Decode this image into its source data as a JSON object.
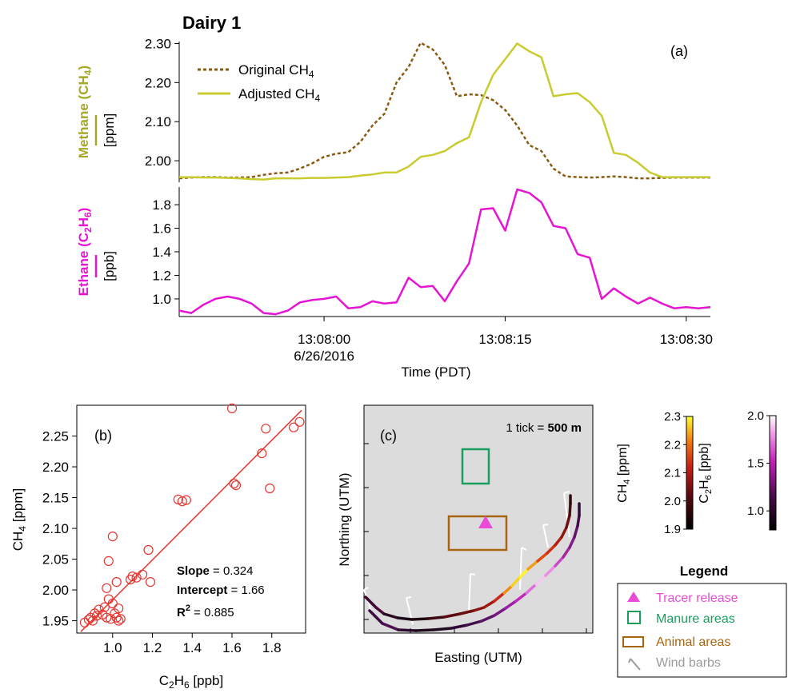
{
  "figure_title": "Dairy 1",
  "chart_data": [
    {
      "panel_label": "(a)",
      "type": "line",
      "xlabel": "Time (PDT)",
      "x_ticks": [
        {
          "label": "13:08:00",
          "t": 12,
          "sublabel": "6/26/2016"
        },
        {
          "label": "13:08:15",
          "t": 27,
          "sublabel": ""
        },
        {
          "label": "13:08:30",
          "t": 42,
          "sublabel": ""
        }
      ],
      "xlim": [
        0,
        44
      ],
      "subplots": [
        {
          "ylabel_main": "Methane",
          "ylabel_species": "CH",
          "ylabel_species_sub": "4",
          "ylabel_unit": "[ppm]",
          "color_label": "#a3a828",
          "ylim": [
            1.945,
            2.305
          ],
          "yticks": [
            2.0,
            2.1,
            2.2,
            2.3
          ],
          "ytick_labels": [
            "2.00",
            "2.10",
            "2.20",
            "2.30"
          ],
          "legend": [
            {
              "label": "Original CH",
              "sub": "4",
              "style": "dotted",
              "color": "#8a5a12"
            },
            {
              "label": "Adjusted CH",
              "sub": "4",
              "style": "solid",
              "color": "#c8cc30"
            }
          ],
          "series": [
            {
              "name": "Original CH4",
              "color": "#8a5a12",
              "style": "dotted",
              "x": [
                0,
                1,
                2,
                3,
                4,
                5,
                6,
                7,
                8,
                9,
                10,
                11,
                12,
                13,
                14,
                15,
                16,
                17,
                18,
                19,
                20,
                21,
                22,
                23,
                24,
                25,
                26,
                27,
                28,
                29,
                30,
                31,
                32,
                33,
                34,
                35,
                36,
                37,
                38,
                39,
                40,
                41,
                42,
                43,
                44
              ],
              "y": [
                1.955,
                1.957,
                1.958,
                1.958,
                1.957,
                1.957,
                1.958,
                1.964,
                1.968,
                1.97,
                1.98,
                1.993,
                2.01,
                2.018,
                2.022,
                2.048,
                2.09,
                2.12,
                2.2,
                2.24,
                2.302,
                2.285,
                2.245,
                2.165,
                2.17,
                2.168,
                2.155,
                2.13,
                2.09,
                2.04,
                2.025,
                1.98,
                1.96,
                1.958,
                1.957,
                1.958,
                1.96,
                1.958,
                1.955,
                1.955,
                1.956,
                1.957,
                1.957,
                1.957,
                1.957
              ]
            },
            {
              "name": "Adjusted CH4",
              "color": "#c8cc30",
              "style": "solid",
              "x": [
                0,
                1,
                2,
                3,
                4,
                5,
                6,
                7,
                8,
                9,
                10,
                11,
                12,
                13,
                14,
                15,
                16,
                17,
                18,
                19,
                20,
                21,
                22,
                23,
                24,
                25,
                26,
                27,
                28,
                29,
                30,
                31,
                32,
                33,
                34,
                35,
                36,
                37,
                38,
                39,
                40,
                41,
                42,
                43,
                44
              ],
              "y": [
                1.958,
                1.958,
                1.957,
                1.957,
                1.956,
                1.955,
                1.953,
                1.952,
                1.955,
                1.955,
                1.955,
                1.956,
                1.956,
                1.957,
                1.958,
                1.962,
                1.965,
                1.97,
                1.97,
                1.985,
                2.01,
                2.015,
                2.025,
                2.045,
                2.06,
                2.15,
                2.22,
                2.26,
                2.3,
                2.28,
                2.265,
                2.165,
                2.17,
                2.173,
                2.15,
                2.115,
                2.02,
                2.015,
                1.995,
                1.97,
                1.958,
                1.958,
                1.958,
                1.958,
                1.958
              ]
            }
          ]
        },
        {
          "ylabel_main": "Ethane",
          "ylabel_species": "C",
          "ylabel_species_sub1": "2",
          "ylabel_species_mid": "H",
          "ylabel_species_sub2": "6",
          "ylabel_unit": "[ppb]",
          "color_label": "#e615d4",
          "ylim": [
            0.85,
            1.95
          ],
          "yticks": [
            1.0,
            1.2,
            1.4,
            1.6,
            1.8
          ],
          "ytick_labels": [
            "1.0",
            "1.2",
            "1.4",
            "1.6",
            "1.8"
          ],
          "series": [
            {
              "name": "Ethane",
              "color": "#e615d4",
              "style": "solid",
              "x": [
                0,
                1,
                2,
                3,
                4,
                5,
                6,
                7,
                8,
                9,
                10,
                11,
                12,
                13,
                14,
                15,
                16,
                17,
                18,
                19,
                20,
                21,
                22,
                23,
                24,
                25,
                26,
                27,
                28,
                29,
                30,
                31,
                32,
                33,
                34,
                35,
                36,
                37,
                38,
                39,
                40,
                41,
                42,
                43,
                44
              ],
              "y": [
                0.9,
                0.88,
                0.95,
                1.0,
                1.02,
                1.0,
                0.96,
                0.88,
                0.87,
                0.9,
                0.97,
                0.99,
                1.0,
                1.02,
                0.92,
                0.93,
                0.98,
                0.96,
                0.97,
                1.18,
                1.1,
                1.11,
                0.98,
                1.15,
                1.3,
                1.76,
                1.77,
                1.58,
                1.93,
                1.9,
                1.82,
                1.62,
                1.6,
                1.38,
                1.35,
                1.0,
                1.09,
                1.02,
                0.96,
                1.01,
                0.96,
                0.92,
                0.93,
                0.92,
                0.93
              ]
            }
          ]
        }
      ]
    },
    {
      "panel_label": "(b)",
      "type": "scatter",
      "xlabel_main": "C",
      "xlabel_sub1": "2",
      "xlabel_mid": "H",
      "xlabel_sub2": "6",
      "xlabel_unit": " [ppb]",
      "ylabel_main": "CH",
      "ylabel_sub": "4",
      "ylabel_unit": " [ppm]",
      "xlim": [
        0.82,
        1.97
      ],
      "ylim": [
        1.93,
        2.3
      ],
      "xticks": [
        1.0,
        1.2,
        1.4,
        1.6,
        1.8
      ],
      "xtick_labels": [
        "1.0",
        "1.2",
        "1.4",
        "1.6",
        "1.8"
      ],
      "yticks": [
        1.95,
        2.0,
        2.05,
        2.1,
        2.15,
        2.2,
        2.25
      ],
      "ytick_labels": [
        "1.95",
        "2.00",
        "2.05",
        "2.10",
        "2.15",
        "2.20",
        "2.25"
      ],
      "point_color": "#e8342e",
      "fit_color": "#e8342e",
      "fit": {
        "slope": 0.324,
        "intercept": 1.66,
        "x_range": [
          0.84,
          1.95
        ]
      },
      "stats": [
        {
          "label": "Slope",
          "value": " = 0.324"
        },
        {
          "label": "Intercept",
          "value": " = 1.66"
        },
        {
          "label": "R",
          "sup": "2",
          "value": " = 0.885"
        }
      ],
      "points": [
        [
          0.86,
          1.947
        ],
        [
          0.88,
          1.952
        ],
        [
          0.89,
          1.955
        ],
        [
          0.9,
          1.95
        ],
        [
          0.91,
          1.962
        ],
        [
          0.92,
          1.958
        ],
        [
          0.93,
          1.968
        ],
        [
          0.95,
          1.96
        ],
        [
          0.96,
          1.972
        ],
        [
          0.97,
          1.955
        ],
        [
          0.97,
          2.003
        ],
        [
          0.98,
          2.047
        ],
        [
          0.98,
          1.985
        ],
        [
          0.99,
          1.953
        ],
        [
          1.0,
          2.087
        ],
        [
          1.0,
          1.978
        ],
        [
          1.01,
          1.962
        ],
        [
          1.02,
          2.013
        ],
        [
          1.02,
          1.955
        ],
        [
          1.03,
          1.97
        ],
        [
          1.03,
          1.95
        ],
        [
          1.04,
          1.953
        ],
        [
          1.09,
          2.017
        ],
        [
          1.1,
          2.022
        ],
        [
          1.12,
          2.02
        ],
        [
          1.15,
          2.025
        ],
        [
          1.18,
          2.065
        ],
        [
          1.19,
          2.013
        ],
        [
          1.33,
          2.147
        ],
        [
          1.35,
          2.144
        ],
        [
          1.37,
          2.146
        ],
        [
          1.6,
          2.295
        ],
        [
          1.61,
          2.173
        ],
        [
          1.62,
          2.17
        ],
        [
          1.75,
          2.222
        ],
        [
          1.77,
          2.262
        ],
        [
          1.79,
          2.165
        ],
        [
          1.91,
          2.264
        ],
        [
          1.94,
          2.273
        ]
      ]
    },
    {
      "panel_label": "(c)",
      "type": "map",
      "xlabel": "Easting (UTM)",
      "ylabel": "Northing (UTM)",
      "scale_prefix": "1 tick = ",
      "scale_value": "500 m",
      "background": "#dcdcdc",
      "manure_color": "#1a9e5e",
      "animal_color": "#a8650f",
      "tracer_color": "#e94bd6",
      "colorbars": [
        {
          "label_main": "CH",
          "label_sub": "4",
          "label_unit": " [ppm]",
          "ticks": [
            "2.3",
            "2.2",
            "2.1",
            "2.0",
            "1.9"
          ],
          "tick_values": [
            2.3,
            2.2,
            2.1,
            2.0,
            1.9
          ],
          "range": [
            1.9,
            2.3
          ]
        },
        {
          "label_main": "C",
          "label_sub1": "2",
          "label_mid": "H",
          "label_sub2": "6",
          "label_unit": " [ppb]",
          "ticks": [
            "2.0",
            "1.5",
            "1.0"
          ],
          "tick_values": [
            2.0,
            1.5,
            1.0
          ],
          "range": [
            0.8,
            2.0
          ]
        }
      ],
      "legend_title": "Legend",
      "legend": [
        {
          "label": "Tracer release",
          "color": "#e94bd6"
        },
        {
          "label": "Manure areas",
          "color": "#1a9e5e"
        },
        {
          "label": "Animal areas",
          "color": "#a8650f"
        },
        {
          "label": "Wind barbs",
          "color": "#9a9a9a"
        }
      ]
    }
  ]
}
